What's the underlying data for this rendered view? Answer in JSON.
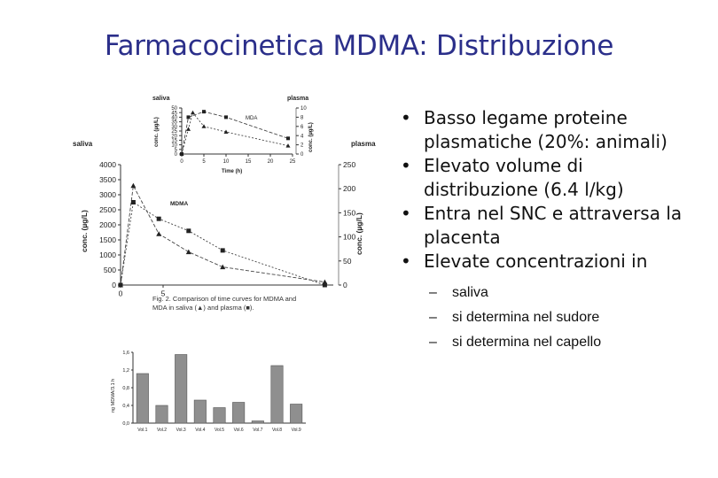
{
  "slide": {
    "title": "Farmacocinetica MDMA: Distribuzione",
    "bullets": [
      "Basso legame proteine plasmatiche (20%: animali)",
      "Elevato volume di distribuzione (6.4 l/kg)",
      "Entra nel SNC e attraversa la placenta",
      "Elevate concentrazioni in"
    ],
    "sub_bullets": [
      "saliva",
      "si determina nel sudore",
      "si determina nel capello"
    ]
  },
  "chart_data": [
    {
      "type": "line",
      "inset": true,
      "title": "",
      "label": "MDA",
      "left_panel_label": "saliva",
      "right_panel_label": "plasma",
      "xlabel": "Time (h)",
      "ylabel_left": "conc. (µg/L)",
      "ylabel_right": "conc. (µg/L)",
      "xlim": [
        0,
        25
      ],
      "ylim_left": [
        0,
        50
      ],
      "ylim_right": [
        0,
        10
      ],
      "x_ticks": [
        "0",
        "5",
        "10",
        "15",
        "20",
        "25"
      ],
      "y_ticks_left": [
        "0",
        "5",
        "10",
        "15",
        "20",
        "25",
        "30",
        "35",
        "40",
        "45",
        "50"
      ],
      "y_ticks_right": [
        "0",
        "2",
        "4",
        "6",
        "8",
        "10"
      ],
      "series": [
        {
          "marker": "square",
          "x": [
            0,
            1.5,
            5,
            10,
            24
          ],
          "y": [
            0,
            40,
            46,
            40,
            17
          ]
        },
        {
          "marker": "triangle",
          "x": [
            0,
            1.5,
            2.5,
            5,
            10,
            24
          ],
          "y": [
            0,
            27,
            45,
            30,
            24,
            9
          ]
        }
      ]
    },
    {
      "type": "line",
      "title": "",
      "label": "MDMA",
      "left_panel_label": "saliva",
      "right_panel_label": "plasma",
      "ylabel_left": "conc. (µg/L)",
      "ylabel_right": "conc. (µg/L)",
      "xlim": [
        0,
        25
      ],
      "ylim_left": [
        0,
        4000
      ],
      "ylim_right": [
        0,
        250
      ],
      "y_ticks_left": [
        "0",
        "500",
        "1000",
        "1500",
        "2000",
        "2500",
        "3000",
        "3500",
        "4000"
      ],
      "y_ticks_right": [
        "0",
        "50",
        "100",
        "150",
        "200",
        "250"
      ],
      "x_ticks": [
        "0",
        "5"
      ],
      "caption": "Fig. 2. Comparison of time curves for MDMA and MDA in saliva (▲) and plasma (■).",
      "series": [
        {
          "marker": "triangle",
          "x": [
            0,
            1.5,
            4.5,
            8,
            12,
            24
          ],
          "y": [
            0,
            3300,
            1700,
            1100,
            600,
            100
          ]
        },
        {
          "marker": "square",
          "x": [
            0,
            1.5,
            4.5,
            8,
            12,
            24
          ],
          "y": [
            0,
            2750,
            2200,
            1800,
            1150,
            0
          ]
        }
      ]
    },
    {
      "type": "bar",
      "title": "",
      "ylabel": "ng MDMA/3.1 h",
      "ylim": [
        0,
        1.6
      ],
      "y_ticks": [
        "0,0",
        "0,4",
        "0,8",
        "1,2",
        "1,6"
      ],
      "categories": [
        "Vol.1",
        "Vol.2",
        "Vol.3",
        "Vol.4",
        "Vol.5",
        "Vol.6",
        "Vol.7",
        "Vol.8",
        "Vol.9"
      ],
      "values": [
        1.12,
        0.4,
        1.55,
        0.52,
        0.35,
        0.47,
        0.05,
        1.3,
        0.43
      ],
      "colors": {
        "bar": "#8f8f8f",
        "bar_edge": "#555555"
      }
    }
  ]
}
